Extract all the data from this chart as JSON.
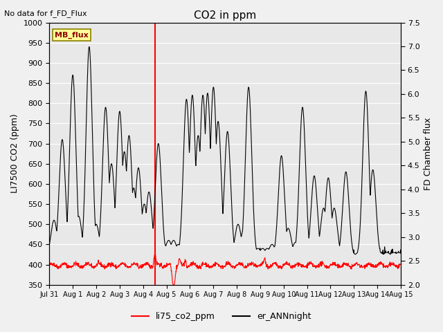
{
  "title": "CO2 in ppm",
  "top_left_text": "No data for f_FD_Flux",
  "ylabel_left": "LI7500 CO2 (ppm)",
  "ylabel_right": "FD Chamber flux",
  "ylim_left": [
    350,
    1000
  ],
  "ylim_right": [
    2.0,
    7.5
  ],
  "yticks_left": [
    350,
    400,
    450,
    500,
    550,
    600,
    650,
    700,
    750,
    800,
    850,
    900,
    950,
    1000
  ],
  "yticks_right": [
    2.0,
    2.5,
    3.0,
    3.5,
    4.0,
    4.5,
    5.0,
    5.5,
    6.0,
    6.5,
    7.0,
    7.5
  ],
  "xtick_labels": [
    "Jul 31",
    "Aug 1",
    "Aug 2",
    "Aug 3",
    "Aug 4",
    "Aug 5",
    "Aug 6",
    "Aug 7",
    "Aug 8",
    "Aug 9",
    "Aug 10",
    "Aug 11",
    "Aug 12",
    "Aug 13",
    "Aug 14",
    "Aug 15"
  ],
  "vline_x": 4.5,
  "vline_color": "#FF0000",
  "fig_bg_color": "#F0F0F0",
  "ax_bg_color": "#E8E8E8",
  "mb_flux_label": "MB_flux",
  "mb_flux_box_color": "#FFFF99",
  "mb_flux_box_edge": "#8B8000",
  "legend_entries": [
    "li75_co2_ppm",
    "er_ANNnight"
  ],
  "legend_colors": [
    "#FF0000",
    "#000000"
  ],
  "red_line_color": "#FF0000",
  "black_line_color": "#000000",
  "num_days": 16,
  "pts_per_day": 100,
  "black_peaks": [
    {
      "day": 0.2,
      "val": 510
    },
    {
      "day": 0.55,
      "val": 710
    },
    {
      "day": 0.75,
      "val": 490
    },
    {
      "day": 1.0,
      "val": 870
    },
    {
      "day": 1.25,
      "val": 520
    },
    {
      "day": 1.5,
      "val": 450
    },
    {
      "day": 1.7,
      "val": 940
    },
    {
      "day": 2.0,
      "val": 500
    },
    {
      "day": 2.2,
      "val": 450
    },
    {
      "day": 2.4,
      "val": 790
    },
    {
      "day": 2.65,
      "val": 650
    },
    {
      "day": 2.8,
      "val": 540
    },
    {
      "day": 3.0,
      "val": 780
    },
    {
      "day": 3.2,
      "val": 680
    },
    {
      "day": 3.4,
      "val": 720
    },
    {
      "day": 3.6,
      "val": 590
    },
    {
      "day": 3.8,
      "val": 640
    },
    {
      "day": 4.05,
      "val": 550
    },
    {
      "day": 4.25,
      "val": 580
    },
    {
      "day": 4.45,
      "val": 420
    },
    {
      "day": 4.65,
      "val": 700
    },
    {
      "day": 4.85,
      "val": 460
    },
    {
      "day": 5.1,
      "val": 460
    },
    {
      "day": 5.3,
      "val": 460
    },
    {
      "day": 5.5,
      "val": 450
    },
    {
      "day": 5.7,
      "val": 455
    },
    {
      "day": 5.85,
      "val": 810
    },
    {
      "day": 6.1,
      "val": 820
    },
    {
      "day": 6.35,
      "val": 720
    },
    {
      "day": 6.55,
      "val": 820
    },
    {
      "day": 6.75,
      "val": 825
    },
    {
      "day": 7.0,
      "val": 840
    },
    {
      "day": 7.2,
      "val": 755
    },
    {
      "day": 7.4,
      "val": 440
    },
    {
      "day": 7.6,
      "val": 730
    },
    {
      "day": 7.8,
      "val": 440
    },
    {
      "day": 8.05,
      "val": 500
    },
    {
      "day": 8.3,
      "val": 490
    },
    {
      "day": 8.5,
      "val": 840
    },
    {
      "day": 8.7,
      "val": 430
    },
    {
      "day": 8.9,
      "val": 440
    },
    {
      "day": 9.1,
      "val": 440
    },
    {
      "day": 9.3,
      "val": 440
    },
    {
      "day": 9.5,
      "val": 450
    },
    {
      "day": 9.7,
      "val": 450
    },
    {
      "day": 9.9,
      "val": 670
    },
    {
      "day": 10.2,
      "val": 490
    },
    {
      "day": 10.5,
      "val": 455
    },
    {
      "day": 10.8,
      "val": 790
    },
    {
      "day": 11.1,
      "val": 430
    },
    {
      "day": 11.3,
      "val": 620
    },
    {
      "day": 11.5,
      "val": 450
    },
    {
      "day": 11.7,
      "val": 540
    },
    {
      "day": 11.9,
      "val": 615
    },
    {
      "day": 12.15,
      "val": 540
    },
    {
      "day": 12.4,
      "val": 430
    },
    {
      "day": 12.65,
      "val": 630
    },
    {
      "day": 12.9,
      "val": 430
    },
    {
      "day": 13.2,
      "val": 430
    },
    {
      "day": 13.5,
      "val": 830
    },
    {
      "day": 13.8,
      "val": 635
    },
    {
      "day": 14.1,
      "val": 430
    },
    {
      "day": 14.4,
      "val": 430
    },
    {
      "day": 14.7,
      "val": 430
    },
    {
      "day": 14.9,
      "val": 430
    }
  ],
  "red_base": 398,
  "red_amplitude": 4,
  "red_noise_scale": 2.5,
  "red_spike_day": 4.5,
  "red_dip_day": 5.3,
  "red_spike2_day": 5.55,
  "red_spike3_day": 5.8,
  "red_spike4_day": 9.2
}
